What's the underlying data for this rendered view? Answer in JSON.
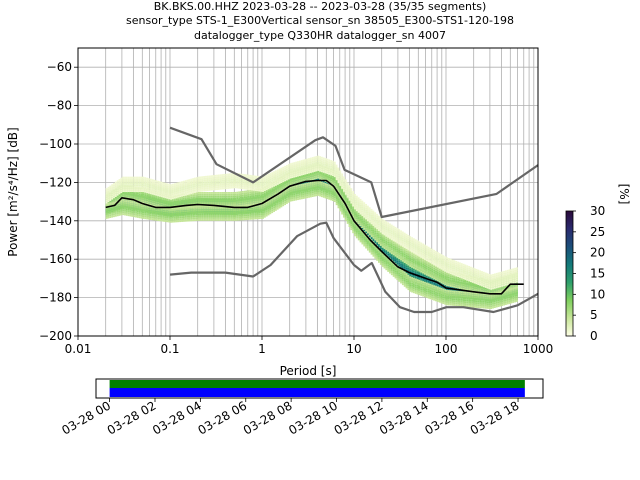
{
  "title_lines": [
    "BK.BKS.00.HHZ   2023-03-28 -- 2023-03-28  (35/35 segments)",
    "sensor_type STS-1_E300Vertical sensor_sn 38505_E300-STS1-120-198",
    "datalogger_type Q330HR datalogger_sn 4007"
  ],
  "chart_data": {
    "type": "line",
    "xscale": "log",
    "xlim": [
      0.01,
      1000
    ],
    "ylim": [
      -200,
      -50
    ],
    "grid": true,
    "xlabel": "Period [s]",
    "ylabel": "Power [m²/s⁴/Hz] [dB]",
    "x_tick_labels": [
      "0.01",
      "0.1",
      "1",
      "10",
      "100",
      "1000"
    ],
    "x_tick_values": [
      0.01,
      0.1,
      1,
      10,
      100,
      1000
    ],
    "y_tick_labels": [
      "−60",
      "−80",
      "−100",
      "−120",
      "−140",
      "−160",
      "−180",
      "−200"
    ],
    "y_tick_values": [
      -60,
      -80,
      -100,
      -120,
      -140,
      -160,
      -180,
      -200
    ],
    "colorbar": {
      "label": "[%]",
      "range": [
        0,
        30
      ],
      "tick_labels": [
        "0",
        "5",
        "10",
        "15",
        "20",
        "25",
        "30"
      ],
      "tick_values": [
        0,
        5,
        10,
        15,
        20,
        25,
        30
      ],
      "colors": [
        "#fefee4",
        "#c8e69a",
        "#7fcf5e",
        "#2e9f6c",
        "#137a7a",
        "#1c4f7a",
        "#2a2a6e",
        "#2a0a3a"
      ]
    },
    "series": [
      {
        "role": "mean",
        "color": "#000000",
        "points": [
          [
            0.02,
            -133
          ],
          [
            0.025,
            -132
          ],
          [
            0.03,
            -128
          ],
          [
            0.04,
            -129
          ],
          [
            0.05,
            -131
          ],
          [
            0.07,
            -133
          ],
          [
            0.1,
            -133
          ],
          [
            0.15,
            -132
          ],
          [
            0.2,
            -131.5
          ],
          [
            0.3,
            -132
          ],
          [
            0.5,
            -133
          ],
          [
            0.7,
            -133
          ],
          [
            1,
            -131
          ],
          [
            1.5,
            -126
          ],
          [
            2,
            -122
          ],
          [
            3,
            -119.5
          ],
          [
            4,
            -119
          ],
          [
            5,
            -119
          ],
          [
            6,
            -122
          ],
          [
            8,
            -131
          ],
          [
            10,
            -140
          ],
          [
            15,
            -150
          ],
          [
            20,
            -156
          ],
          [
            30,
            -164
          ],
          [
            40,
            -167
          ],
          [
            60,
            -170
          ],
          [
            80,
            -172
          ],
          [
            100,
            -175
          ],
          [
            200,
            -177
          ],
          [
            300,
            -178
          ],
          [
            400,
            -178
          ],
          [
            500,
            -173
          ],
          [
            700,
            -173
          ]
        ]
      },
      {
        "role": "noise-model-high",
        "color": "#666666",
        "points": [
          [
            0.1,
            -91.5
          ],
          [
            0.22,
            -97.5
          ],
          [
            0.32,
            -110.5
          ],
          [
            0.8,
            -120
          ],
          [
            3.8,
            -98
          ],
          [
            4.6,
            -96.5
          ],
          [
            6.3,
            -101
          ],
          [
            7.9,
            -113.5
          ],
          [
            15.4,
            -120
          ],
          [
            20,
            -138
          ],
          [
            354.8,
            -126
          ],
          [
            1000,
            -111
          ]
        ]
      },
      {
        "role": "noise-model-low",
        "color": "#666666",
        "points": [
          [
            0.1,
            -168
          ],
          [
            0.17,
            -167
          ],
          [
            0.4,
            -167
          ],
          [
            0.8,
            -169
          ],
          [
            1.24,
            -163
          ],
          [
            2.4,
            -148
          ],
          [
            4.3,
            -141.5
          ],
          [
            5,
            -141
          ],
          [
            6,
            -149
          ],
          [
            10,
            -163
          ],
          [
            12,
            -166
          ],
          [
            15.6,
            -162
          ],
          [
            21.9,
            -177
          ],
          [
            31.6,
            -185
          ],
          [
            45,
            -187.5
          ],
          [
            70,
            -187.5
          ],
          [
            101,
            -185
          ],
          [
            154,
            -185
          ],
          [
            328,
            -187.5
          ],
          [
            600,
            -184
          ],
          [
            1000,
            -178
          ]
        ]
      }
    ],
    "density_bands": [
      {
        "center": [
          [
            0.02,
            -133
          ],
          [
            0.03,
            -129
          ],
          [
            0.05,
            -131
          ],
          [
            0.1,
            -134
          ],
          [
            0.2,
            -132
          ],
          [
            0.5,
            -133
          ],
          [
            1,
            -131
          ],
          [
            2,
            -122
          ],
          [
            4,
            -119
          ],
          [
            6,
            -122
          ],
          [
            10,
            -140
          ],
          [
            20,
            -156
          ],
          [
            40,
            -167
          ],
          [
            100,
            -175
          ],
          [
            300,
            -178
          ],
          [
            600,
            -174
          ]
        ],
        "spread": 4,
        "level": 18
      },
      {
        "center": [
          [
            0.02,
            -130
          ],
          [
            0.03,
            -125
          ],
          [
            0.05,
            -127
          ],
          [
            0.1,
            -131
          ],
          [
            0.2,
            -129
          ],
          [
            0.5,
            -129
          ],
          [
            1,
            -127
          ],
          [
            2,
            -118
          ],
          [
            4,
            -114
          ],
          [
            6,
            -118
          ],
          [
            10,
            -136
          ],
          [
            20,
            -150
          ],
          [
            40,
            -160
          ],
          [
            100,
            -170
          ],
          [
            300,
            -175
          ],
          [
            600,
            -171
          ]
        ],
        "spread": 4,
        "level": 8
      },
      {
        "center": [
          [
            0.02,
            -135
          ],
          [
            0.03,
            -133
          ],
          [
            0.05,
            -135
          ],
          [
            0.1,
            -137
          ],
          [
            0.2,
            -136
          ],
          [
            0.5,
            -136
          ],
          [
            1,
            -135
          ],
          [
            2,
            -126
          ],
          [
            4,
            -123
          ],
          [
            6,
            -126
          ],
          [
            10,
            -144
          ],
          [
            20,
            -160
          ],
          [
            40,
            -173
          ],
          [
            100,
            -180
          ],
          [
            300,
            -182
          ],
          [
            600,
            -178
          ]
        ],
        "spread": 4,
        "level": 8
      },
      {
        "center": [
          [
            0.02,
            -127
          ],
          [
            0.03,
            -121
          ],
          [
            0.05,
            -121
          ],
          [
            0.1,
            -125
          ],
          [
            0.2,
            -121
          ],
          [
            0.5,
            -119
          ],
          [
            1,
            -121
          ],
          [
            2,
            -114
          ],
          [
            4,
            -110
          ],
          [
            6,
            -113
          ],
          [
            10,
            -130
          ],
          [
            20,
            -143
          ],
          [
            40,
            -152
          ],
          [
            100,
            -163
          ],
          [
            300,
            -172
          ],
          [
            600,
            -168
          ]
        ],
        "spread": 4,
        "level": 2
      }
    ]
  },
  "timeline": {
    "tick_labels": [
      "03-28 00",
      "03-28 02",
      "03-28 04",
      "03-28 06",
      "03-28 08",
      "03-28 10",
      "03-28 12",
      "03-28 14",
      "03-28 16",
      "03-28 18"
    ],
    "tick_hours": [
      0,
      2,
      4,
      6,
      8,
      10,
      12,
      14,
      16,
      18
    ],
    "hours_range": [
      -0.6,
      19.1
    ],
    "data_span_hours": [
      0,
      18.3
    ],
    "colors": [
      "#008000",
      "#0000ff"
    ]
  }
}
